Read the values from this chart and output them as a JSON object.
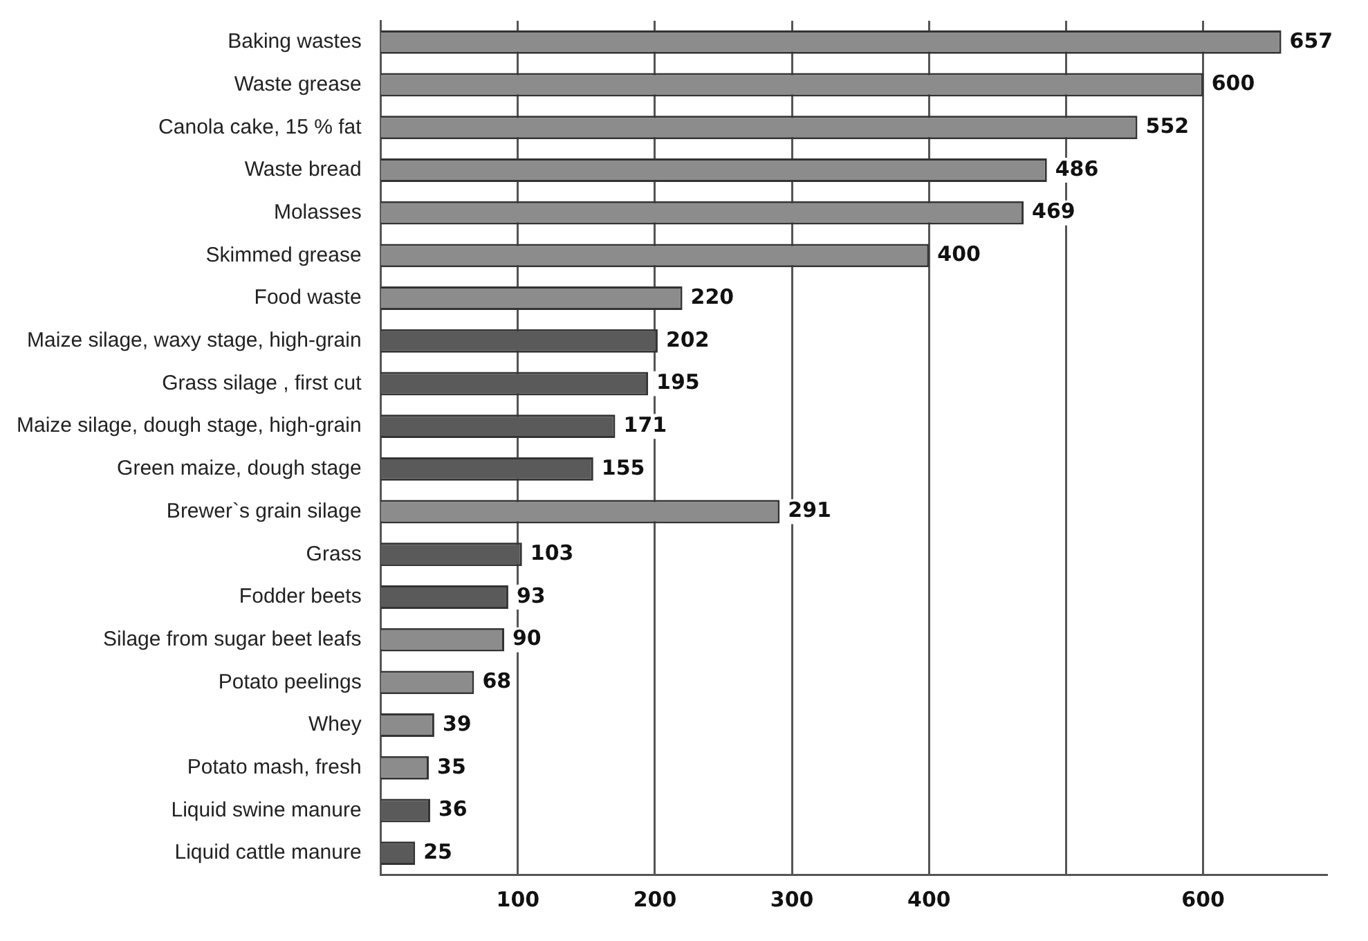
{
  "chart_data": {
    "type": "bar",
    "orientation": "horizontal",
    "categories": [
      "Baking wastes",
      "Waste grease",
      "Canola cake, 15 % fat",
      "Waste bread",
      "Molasses",
      "Skimmed grease",
      "Food waste",
      "Maize silage, waxy stage, high-grain",
      "Grass silage , first cut",
      "Maize silage, dough stage, high-grain",
      "Green maize, dough stage",
      "Brewer`s grain silage",
      "Grass",
      "Fodder beets",
      "Silage from sugar beet leafs",
      "Potato peelings",
      "Whey",
      "Potato mash, fresh",
      "Liquid swine manure",
      "Liquid cattle manure"
    ],
    "values": [
      657,
      600,
      552,
      486,
      469,
      400,
      220,
      202,
      195,
      171,
      155,
      291,
      103,
      93,
      90,
      68,
      39,
      35,
      36,
      25
    ],
    "colors": [
      "#8c8c8c",
      "#8c8c8c",
      "#8c8c8c",
      "#8c8c8c",
      "#8c8c8c",
      "#8c8c8c",
      "#8c8c8c",
      "#5a5a5a",
      "#5a5a5a",
      "#5a5a5a",
      "#5a5a5a",
      "#8c8c8c",
      "#5a5a5a",
      "#5a5a5a",
      "#8c8c8c",
      "#8c8c8c",
      "#8c8c8c",
      "#8c8c8c",
      "#5a5a5a",
      "#5a5a5a"
    ],
    "xlim": [
      0,
      690
    ],
    "xticks": [
      100,
      200,
      300,
      400,
      {
        "value": 500,
        "label": null
      },
      600
    ],
    "grid": "x",
    "data_labels": true,
    "legend": false
  }
}
